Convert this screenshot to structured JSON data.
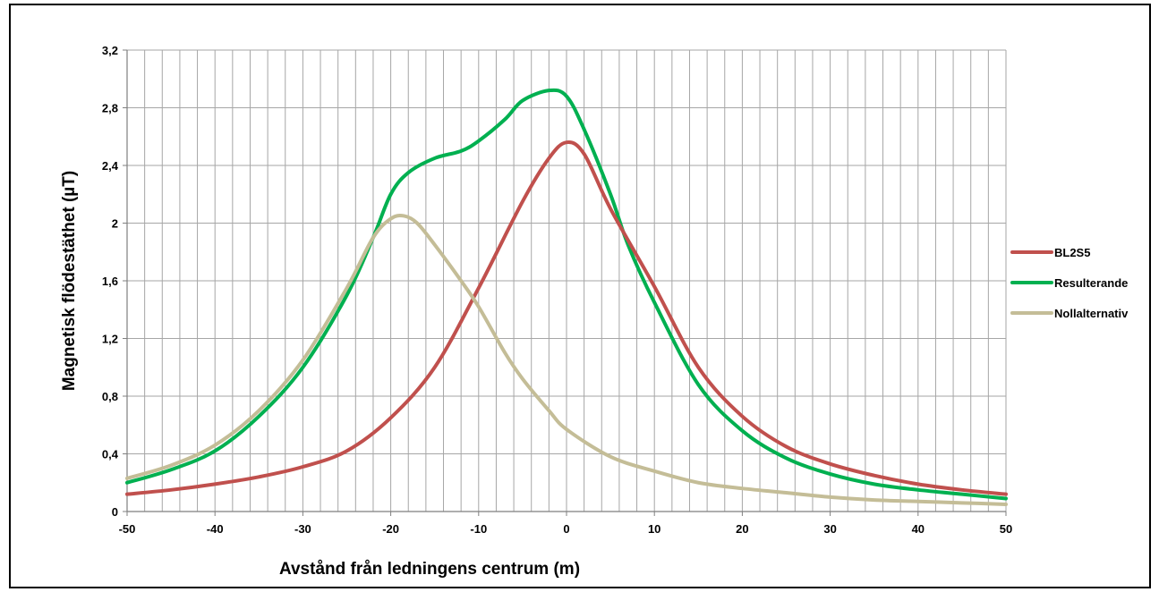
{
  "chart_data": {
    "type": "line",
    "title": "",
    "xlabel": "Avstånd från ledningens centrum (m)",
    "ylabel": "Magnetisk flödestäthet (µT)",
    "xlim": [
      -50,
      50
    ],
    "ylim": [
      0,
      3.2
    ],
    "grid": true,
    "legend_position": "right",
    "x_ticks": [
      "-50",
      "-40",
      "-30",
      "-20",
      "-10",
      "0",
      "10",
      "20",
      "30",
      "40",
      "50"
    ],
    "y_ticks": [
      "0",
      "0,4",
      "0,8",
      "1,2",
      "1,6",
      "2",
      "2,4",
      "2,8",
      "3,2"
    ],
    "series": [
      {
        "name": "BL2S5",
        "color": "#c0504d",
        "x": [
          -50,
          -45,
          -40,
          -35,
          -30,
          -25,
          -20,
          -15,
          -10,
          -5,
          -2,
          0,
          2,
          5,
          10,
          15,
          20,
          25,
          30,
          35,
          40,
          45,
          50
        ],
        "y": [
          0.12,
          0.15,
          0.19,
          0.24,
          0.31,
          0.42,
          0.65,
          1.0,
          1.55,
          2.15,
          2.45,
          2.56,
          2.48,
          2.1,
          1.56,
          1.0,
          0.66,
          0.45,
          0.33,
          0.25,
          0.19,
          0.15,
          0.12
        ]
      },
      {
        "name": "Resulterande",
        "color": "#00b050",
        "x": [
          -50,
          -45,
          -40,
          -35,
          -30,
          -25,
          -22,
          -20,
          -18,
          -15,
          -12,
          -10,
          -7,
          -5,
          -2,
          0,
          2,
          5,
          7,
          10,
          15,
          20,
          25,
          30,
          35,
          40,
          45,
          50
        ],
        "y": [
          0.2,
          0.29,
          0.42,
          0.66,
          1.0,
          1.5,
          1.9,
          2.2,
          2.35,
          2.45,
          2.5,
          2.57,
          2.72,
          2.85,
          2.92,
          2.88,
          2.65,
          2.2,
          1.85,
          1.45,
          0.88,
          0.56,
          0.37,
          0.26,
          0.19,
          0.15,
          0.12,
          0.09
        ]
      },
      {
        "name": "Nollalternativ",
        "color": "#c4bd97",
        "x": [
          -50,
          -45,
          -40,
          -35,
          -30,
          -25,
          -22,
          -20,
          -18.5,
          -17,
          -15,
          -12,
          -10,
          -7,
          -5,
          -2,
          0,
          5,
          10,
          15,
          20,
          25,
          30,
          35,
          40,
          45,
          50
        ],
        "y": [
          0.23,
          0.32,
          0.46,
          0.7,
          1.05,
          1.55,
          1.9,
          2.03,
          2.05,
          2.0,
          1.85,
          1.6,
          1.42,
          1.1,
          0.92,
          0.7,
          0.57,
          0.38,
          0.28,
          0.2,
          0.16,
          0.13,
          0.1,
          0.08,
          0.07,
          0.06,
          0.05
        ]
      }
    ]
  }
}
